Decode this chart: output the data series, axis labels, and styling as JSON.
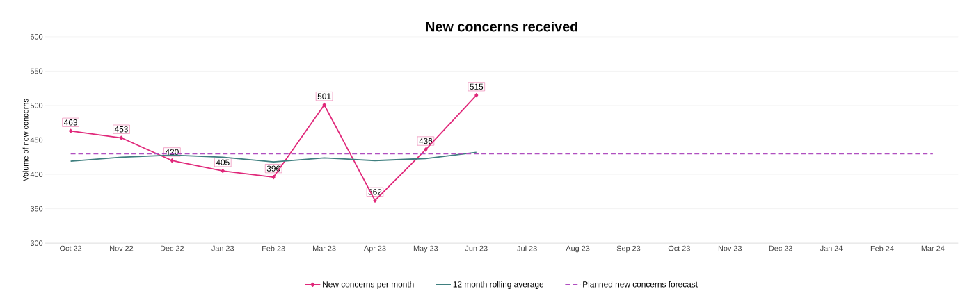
{
  "chart_data": {
    "type": "line",
    "title": "New concerns received",
    "ylabel": "Volume of new concerns",
    "categories": [
      "Oct 22",
      "Nov 22",
      "Dec 22",
      "Jan 23",
      "Feb 23",
      "Mar 23",
      "Apr 23",
      "May 23",
      "Jun 23",
      "Jul 23",
      "Aug 23",
      "Sep 23",
      "Oct 23",
      "Nov 23",
      "Dec 23",
      "Jan 24",
      "Feb 24",
      "Mar 24"
    ],
    "series": [
      {
        "name": "New concerns per month",
        "color": "#e0287a",
        "marker": "diamond",
        "line_style": "solid",
        "values": [
          463,
          453,
          420,
          405,
          396,
          501,
          362,
          436,
          515,
          null,
          null,
          null,
          null,
          null,
          null,
          null,
          null,
          null
        ],
        "value_labels": [
          "463",
          "453",
          "420",
          "405",
          "396",
          "501",
          "362",
          "436",
          "515",
          null,
          null,
          null,
          null,
          null,
          null,
          null,
          null,
          null
        ]
      },
      {
        "name": "12 month rolling average",
        "color": "#3f7f7f",
        "marker": "none",
        "line_style": "solid",
        "values": [
          419,
          425,
          428,
          425,
          418,
          424,
          420,
          423,
          432,
          null,
          null,
          null,
          null,
          null,
          null,
          null,
          null,
          null
        ]
      },
      {
        "name": "Planned new concerns forecast",
        "color": "#b04fc0",
        "marker": "none",
        "line_style": "dashed",
        "values": [
          430,
          430,
          430,
          430,
          430,
          430,
          430,
          430,
          430,
          430,
          430,
          430,
          430,
          430,
          430,
          430,
          430,
          430
        ]
      }
    ],
    "ylim": [
      300,
      600
    ],
    "yticks": [
      300,
      350,
      400,
      450,
      500,
      550,
      600
    ],
    "grid": "y",
    "legend": "bottom"
  }
}
